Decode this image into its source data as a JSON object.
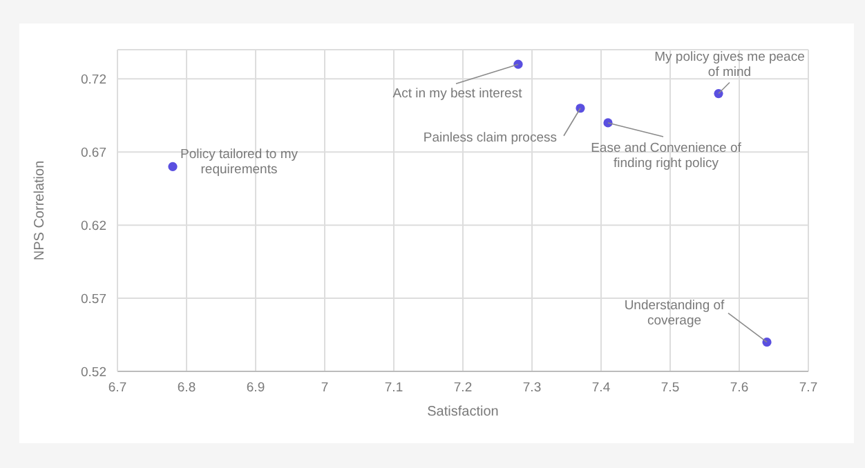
{
  "chart_data": {
    "type": "scatter",
    "xlabel": "Satisfaction",
    "ylabel": "NPS Correlation",
    "x": [
      6.78,
      7.28,
      7.37,
      7.41,
      7.57,
      7.64
    ],
    "values": [
      0.66,
      0.73,
      0.7,
      0.69,
      0.71,
      0.54
    ],
    "color": "#5a4fe0",
    "marker": "circle",
    "grid": true,
    "legend": false,
    "xlim": [
      6.7,
      7.7
    ],
    "xticks": [
      6.7,
      6.8,
      6.9,
      7,
      7.1,
      7.2,
      7.3,
      7.4,
      7.5,
      7.6,
      7.7
    ],
    "ylim": [
      0.52,
      0.74
    ],
    "yticks": [
      0.52,
      0.57,
      0.62,
      0.67,
      0.72
    ],
    "annotations": [
      {
        "text": "Policy tailored to my requirements",
        "x": 6.78,
        "y": 0.66
      },
      {
        "text": "Act in my best interest",
        "x": 7.28,
        "y": 0.73
      },
      {
        "text": "Painless claim process",
        "x": 7.37,
        "y": 0.7
      },
      {
        "text": "Ease and Convenience of finding right policy",
        "x": 7.41,
        "y": 0.69
      },
      {
        "text": "My policy gives me peace of mind",
        "x": 7.57,
        "y": 0.71
      },
      {
        "text": "Understanding of coverage",
        "x": 7.64,
        "y": 0.54
      }
    ]
  }
}
